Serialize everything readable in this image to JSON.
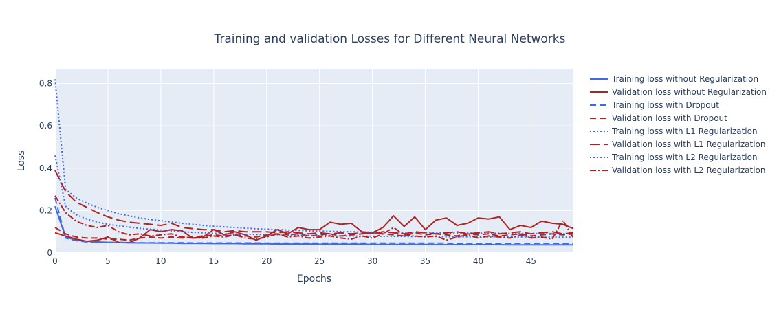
{
  "chart_data": {
    "type": "line",
    "title": "Training and validation Losses for Different Neural Networks",
    "xlabel": "Epochs",
    "ylabel": "Loss",
    "xlim": [
      0,
      49
    ],
    "ylim": [
      0,
      0.87
    ],
    "xticks": [
      0,
      5,
      10,
      15,
      20,
      25,
      30,
      35,
      40,
      45
    ],
    "yticks": [
      0,
      0.2,
      0.4,
      0.6,
      0.8
    ],
    "grid": true,
    "legend_position": "right",
    "background": "#e5ecf6",
    "x": [
      0,
      1,
      2,
      3,
      4,
      5,
      6,
      7,
      8,
      9,
      10,
      11,
      12,
      13,
      14,
      15,
      16,
      17,
      18,
      19,
      20,
      21,
      22,
      23,
      24,
      25,
      26,
      27,
      28,
      29,
      30,
      31,
      32,
      33,
      34,
      35,
      36,
      37,
      38,
      39,
      40,
      41,
      42,
      43,
      44,
      45,
      46,
      47,
      48,
      49
    ],
    "series": [
      {
        "name": "Training loss without Regularization",
        "color": "#4169e1",
        "dash": "solid",
        "values": [
          0.22,
          0.075,
          0.06,
          0.055,
          0.052,
          0.05,
          0.049,
          0.048,
          0.047,
          0.047,
          0.046,
          0.046,
          0.045,
          0.045,
          0.045,
          0.044,
          0.044,
          0.044,
          0.043,
          0.043,
          0.043,
          0.042,
          0.042,
          0.042,
          0.042,
          0.041,
          0.041,
          0.041,
          0.041,
          0.041,
          0.04,
          0.04,
          0.04,
          0.04,
          0.04,
          0.04,
          0.039,
          0.039,
          0.039,
          0.039,
          0.039,
          0.039,
          0.039,
          0.038,
          0.038,
          0.038,
          0.038,
          0.038,
          0.038,
          0.038
        ]
      },
      {
        "name": "Validation loss without Regularization",
        "color": "#b22222",
        "dash": "solid",
        "values": [
          0.095,
          0.08,
          0.065,
          0.055,
          0.06,
          0.075,
          0.05,
          0.048,
          0.07,
          0.11,
          0.1,
          0.11,
          0.105,
          0.07,
          0.075,
          0.11,
          0.085,
          0.1,
          0.085,
          0.06,
          0.08,
          0.11,
          0.09,
          0.12,
          0.11,
          0.11,
          0.145,
          0.135,
          0.14,
          0.1,
          0.095,
          0.12,
          0.175,
          0.125,
          0.17,
          0.11,
          0.155,
          0.165,
          0.13,
          0.14,
          0.165,
          0.16,
          0.17,
          0.11,
          0.13,
          0.12,
          0.15,
          0.14,
          0.135,
          0.115
        ]
      },
      {
        "name": "Training loss with Dropout",
        "color": "#4169e1",
        "dash": "dash",
        "values": [
          0.26,
          0.07,
          0.058,
          0.052,
          0.05,
          0.05,
          0.049,
          0.049,
          0.048,
          0.048,
          0.048,
          0.048,
          0.048,
          0.047,
          0.047,
          0.047,
          0.047,
          0.047,
          0.047,
          0.047,
          0.046,
          0.046,
          0.046,
          0.046,
          0.046,
          0.046,
          0.046,
          0.046,
          0.046,
          0.046,
          0.046,
          0.046,
          0.046,
          0.046,
          0.046,
          0.046,
          0.046,
          0.046,
          0.045,
          0.045,
          0.045,
          0.045,
          0.045,
          0.045,
          0.045,
          0.045,
          0.045,
          0.045,
          0.044,
          0.044
        ]
      },
      {
        "name": "Validation loss with Dropout",
        "color": "#b22222",
        "dash": "dash",
        "values": [
          0.12,
          0.09,
          0.075,
          0.07,
          0.07,
          0.065,
          0.065,
          0.06,
          0.07,
          0.075,
          0.07,
          0.075,
          0.07,
          0.075,
          0.08,
          0.085,
          0.08,
          0.085,
          0.08,
          0.075,
          0.085,
          0.09,
          0.085,
          0.09,
          0.08,
          0.085,
          0.09,
          0.08,
          0.085,
          0.09,
          0.095,
          0.09,
          0.085,
          0.08,
          0.095,
          0.085,
          0.09,
          0.085,
          0.08,
          0.09,
          0.085,
          0.09,
          0.08,
          0.085,
          0.09,
          0.08,
          0.085,
          0.09,
          0.085,
          0.09
        ]
      },
      {
        "name": "Training loss with L1 Regularization",
        "color": "#4169e1",
        "dash": "dot",
        "values": [
          0.82,
          0.3,
          0.26,
          0.235,
          0.215,
          0.2,
          0.185,
          0.175,
          0.165,
          0.158,
          0.152,
          0.146,
          0.14,
          0.135,
          0.13,
          0.126,
          0.123,
          0.12,
          0.117,
          0.114,
          0.112,
          0.11,
          0.108,
          0.106,
          0.104,
          0.103,
          0.102,
          0.101,
          0.1,
          0.099,
          0.098,
          0.097,
          0.097,
          0.096,
          0.096,
          0.095,
          0.095,
          0.094,
          0.094,
          0.094,
          0.093,
          0.093,
          0.093,
          0.092,
          0.092,
          0.092,
          0.092,
          0.091,
          0.091,
          0.091
        ]
      },
      {
        "name": "Validation loss with L1 Regularization",
        "color": "#b22222",
        "dash": "longdash",
        "values": [
          0.39,
          0.29,
          0.24,
          0.215,
          0.19,
          0.17,
          0.155,
          0.145,
          0.14,
          0.135,
          0.13,
          0.14,
          0.12,
          0.115,
          0.11,
          0.11,
          0.1,
          0.105,
          0.1,
          0.1,
          0.1,
          0.095,
          0.1,
          0.095,
          0.09,
          0.095,
          0.09,
          0.095,
          0.09,
          0.095,
          0.09,
          0.1,
          0.095,
          0.09,
          0.1,
          0.095,
          0.09,
          0.095,
          0.1,
          0.09,
          0.095,
          0.1,
          0.09,
          0.095,
          0.1,
          0.09,
          0.095,
          0.1,
          0.09,
          0.095
        ]
      },
      {
        "name": "Training loss with L2 Regularization",
        "color": "#4169e1",
        "dash": "dot",
        "values": [
          0.46,
          0.22,
          0.18,
          0.16,
          0.145,
          0.135,
          0.128,
          0.122,
          0.116,
          0.112,
          0.108,
          0.104,
          0.1,
          0.097,
          0.095,
          0.093,
          0.091,
          0.09,
          0.088,
          0.087,
          0.086,
          0.085,
          0.084,
          0.083,
          0.082,
          0.081,
          0.081,
          0.08,
          0.08,
          0.079,
          0.079,
          0.078,
          0.078,
          0.078,
          0.077,
          0.077,
          0.077,
          0.076,
          0.076,
          0.076,
          0.076,
          0.075,
          0.075,
          0.075,
          0.075,
          0.075,
          0.074,
          0.074,
          0.074,
          0.074
        ]
      },
      {
        "name": "Validation loss with L2 Regularization",
        "color": "#b22222",
        "dash": "dashdot",
        "values": [
          0.27,
          0.19,
          0.15,
          0.13,
          0.12,
          0.13,
          0.1,
          0.085,
          0.09,
          0.08,
          0.085,
          0.09,
          0.075,
          0.07,
          0.07,
          0.08,
          0.075,
          0.085,
          0.07,
          0.065,
          0.075,
          0.09,
          0.075,
          0.08,
          0.07,
          0.075,
          0.08,
          0.07,
          0.065,
          0.08,
          0.07,
          0.09,
          0.12,
          0.085,
          0.08,
          0.075,
          0.08,
          0.06,
          0.075,
          0.085,
          0.07,
          0.08,
          0.075,
          0.07,
          0.085,
          0.07,
          0.075,
          0.065,
          0.155,
          0.07
        ]
      }
    ]
  }
}
